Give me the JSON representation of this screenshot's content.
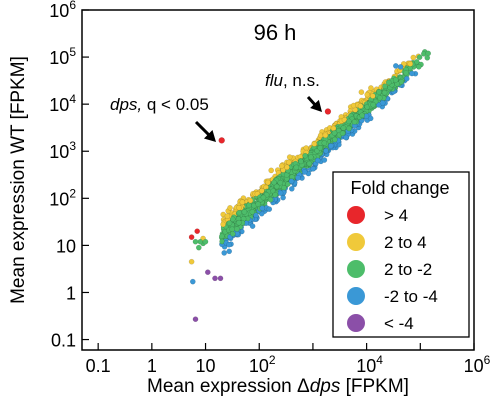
{
  "chart_data": {
    "type": "scatter",
    "title": "96 h",
    "xlabel_prefix": "Mean expression Δ",
    "xlabel_italic": "dps",
    "xlabel_suffix": " [FPKM]",
    "ylabel": "Mean expression WT [FPKM]",
    "x_scale": "log",
    "y_scale": "log",
    "xlim": [
      0.05,
      1000000
    ],
    "ylim": [
      0.06,
      1000000
    ],
    "x_ticks": [
      {
        "value": 0.1,
        "label": "0.1",
        "base": "",
        "exp": ""
      },
      {
        "value": 1,
        "label": "1",
        "base": "",
        "exp": ""
      },
      {
        "value": 10,
        "label": "10",
        "base": "",
        "exp": ""
      },
      {
        "value": 100,
        "label": "",
        "base": "10",
        "exp": "2"
      },
      {
        "value": 10000,
        "label": "",
        "base": "10",
        "exp": "4"
      },
      {
        "value": 1000000,
        "label": "",
        "base": "10",
        "exp": "6"
      }
    ],
    "x_minor_ticks": [
      1000,
      100000
    ],
    "y_ticks": [
      {
        "value": 0.1,
        "label": "0.1",
        "base": "",
        "exp": ""
      },
      {
        "value": 1,
        "label": "1",
        "base": "",
        "exp": ""
      },
      {
        "value": 10,
        "label": "10",
        "base": "",
        "exp": ""
      },
      {
        "value": 100,
        "label": "",
        "base": "10",
        "exp": "2"
      },
      {
        "value": 1000,
        "label": "",
        "base": "10",
        "exp": "3"
      },
      {
        "value": 10000,
        "label": "",
        "base": "10",
        "exp": "4"
      },
      {
        "value": 100000,
        "label": "",
        "base": "10",
        "exp": "5"
      },
      {
        "value": 1000000,
        "label": "",
        "base": "10",
        "exp": "6"
      }
    ],
    "legend": {
      "title": "Fold change",
      "position": "bottom-right",
      "entries": [
        {
          "label": "> 4",
          "color": "#e8262b"
        },
        {
          "label": "2 to 4",
          "color": "#f0c93a"
        },
        {
          "label": "2 to -2",
          "color": "#4dbd6a"
        },
        {
          "label": "-2 to -4",
          "color": "#3a98d6"
        },
        {
          "label": "< -4",
          "color": "#8b4fa8"
        }
      ]
    },
    "annotations": [
      {
        "italic": "dps,",
        "text": " q < 0.05",
        "x": 20,
        "y": 1700
      },
      {
        "italic": "flu",
        "text": ", n.s.",
        "x": 1900,
        "y": 7000
      }
    ],
    "cloud_trend": {
      "x_start": 20,
      "x_end": 150000,
      "y_ratio": 0.85,
      "spread_log10": 0.17
    },
    "highlighted_points": [
      {
        "x": 20,
        "y": 1700,
        "group": "> 4"
      },
      {
        "x": 1900,
        "y": 7000,
        "group": "> 4"
      }
    ],
    "low_points": [
      {
        "x": 5.5,
        "y": 15,
        "group": "> 4"
      },
      {
        "x": 7,
        "y": 20,
        "group": "> 4"
      },
      {
        "x": 5.5,
        "y": 4.5,
        "group": "2 to 4"
      },
      {
        "x": 7.5,
        "y": 9,
        "group": "2 to -2"
      },
      {
        "x": 9,
        "y": 11,
        "group": "2 to -2"
      },
      {
        "x": 9,
        "y": 14,
        "group": "2 to 4"
      },
      {
        "x": 8,
        "y": 12,
        "group": "2 to -2"
      },
      {
        "x": 6.5,
        "y": 12,
        "group": "2 to -2"
      },
      {
        "x": 10,
        "y": 12,
        "group": "2 to -2"
      },
      {
        "x": 5.8,
        "y": 1.7,
        "group": "-2 to -4"
      },
      {
        "x": 11,
        "y": 2.7,
        "group": "< -4"
      },
      {
        "x": 15,
        "y": 2.0,
        "group": "< -4"
      },
      {
        "x": 19,
        "y": 2.0,
        "group": "< -4"
      },
      {
        "x": 6.5,
        "y": 0.27,
        "group": "< -4"
      }
    ],
    "top_points": [
      {
        "x": 35000,
        "y": 65000,
        "group": "-2 to -4"
      },
      {
        "x": 43000,
        "y": 62000,
        "group": "-2 to -4"
      },
      {
        "x": 140000,
        "y": 120000,
        "group": "2 to -2"
      },
      {
        "x": 22000,
        "y": 24000,
        "group": "2 to -2"
      },
      {
        "x": 12000,
        "y": 22000,
        "group": "2 to 4"
      },
      {
        "x": 8000,
        "y": 18000,
        "group": "2 to 4"
      }
    ]
  }
}
